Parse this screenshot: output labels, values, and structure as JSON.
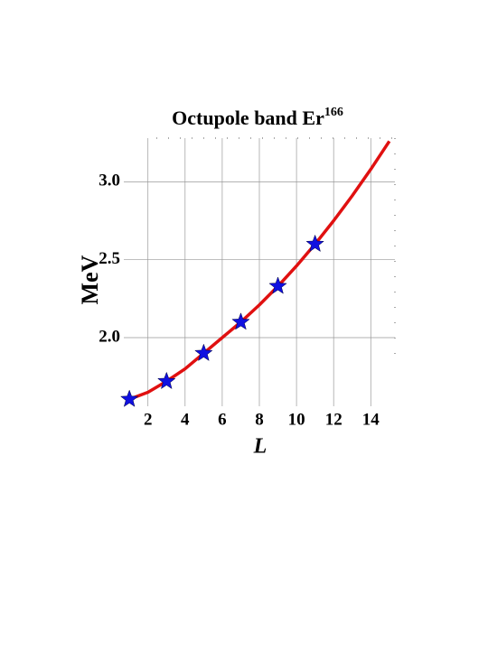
{
  "chart_data": {
    "type": "line",
    "title": "Octupole band Er",
    "title_superscript": "166",
    "xlabel": "L",
    "ylabel": "MeV",
    "xlim": [
      0.7,
      15.3
    ],
    "ylim": [
      1.56,
      3.28
    ],
    "xticks": [
      2,
      4,
      6,
      8,
      10,
      12,
      14
    ],
    "yticks": [
      {
        "value": 2,
        "label": "2.0"
      },
      {
        "value": 2.5,
        "label": "2.5"
      },
      {
        "value": 3,
        "label": "3.0"
      }
    ],
    "grid": true,
    "series": [
      {
        "type": "line",
        "color": "#e01010",
        "x": [
          1,
          2,
          3,
          4,
          5,
          6,
          7,
          8,
          9,
          10,
          11,
          12,
          13,
          14,
          15
        ],
        "values": [
          1.605,
          1.65,
          1.72,
          1.8,
          1.9,
          2.0,
          2.1,
          2.21,
          2.33,
          2.46,
          2.6,
          2.75,
          2.91,
          3.08,
          3.26
        ]
      },
      {
        "type": "scatter",
        "color": "#1010e0",
        "marker": "star",
        "x": [
          1,
          3,
          5,
          7,
          9,
          11
        ],
        "values": [
          1.605,
          1.72,
          1.9,
          2.1,
          2.33,
          2.6
        ]
      }
    ]
  }
}
